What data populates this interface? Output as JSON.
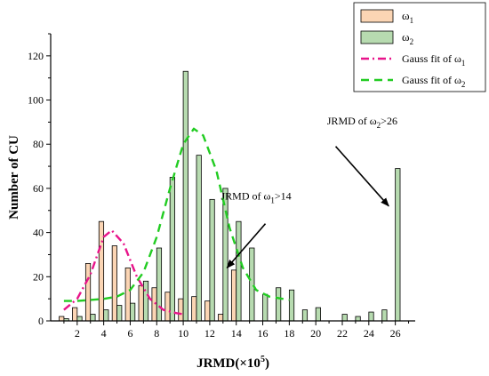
{
  "chart_data": {
    "type": "bar",
    "xlabel_main": "JRMD(×10",
    "xlabel_exp": "5",
    "xlabel_close": ")",
    "ylabel": "Number of CU",
    "xlim": [
      0,
      27.5
    ],
    "ylim": [
      0,
      130
    ],
    "x_ticks": [
      2,
      4,
      6,
      8,
      10,
      12,
      14,
      16,
      18,
      20,
      22,
      24,
      26
    ],
    "y_ticks": [
      0,
      20,
      40,
      60,
      80,
      100,
      120
    ],
    "colors": {
      "omega1_fill": "#fbd5b4",
      "omega2_fill": "#b7dbb0",
      "gauss1": "#e8148a",
      "gauss2": "#22cc22"
    },
    "series": [
      {
        "name_base": "ω",
        "name_sub": "1",
        "x": [
          1,
          2,
          3,
          4,
          5,
          6,
          7,
          8,
          9,
          10,
          11,
          12,
          13,
          14
        ],
        "values": [
          2,
          6,
          26,
          45,
          34,
          24,
          16,
          15,
          13,
          10,
          11,
          9,
          3,
          23
        ]
      },
      {
        "name_base": "ω",
        "name_sub": "2",
        "x": [
          1,
          2,
          3,
          4,
          5,
          6,
          7,
          8,
          9,
          10,
          11,
          12,
          13,
          14,
          15,
          16,
          17,
          18,
          19,
          20,
          22,
          23,
          24,
          25,
          26
        ],
        "values": [
          1,
          2,
          3,
          5,
          7,
          8,
          18,
          33,
          65,
          113,
          75,
          55,
          60,
          45,
          33,
          12,
          15,
          14,
          5,
          6,
          3,
          2,
          4,
          5,
          69
        ]
      }
    ],
    "fits": [
      {
        "name_base": "Gauss fit of ω",
        "name_sub": "1",
        "points": [
          [
            1,
            5
          ],
          [
            2,
            10
          ],
          [
            3,
            21
          ],
          [
            4,
            38
          ],
          [
            4.6,
            41
          ],
          [
            5.5,
            35
          ],
          [
            6.5,
            20
          ],
          [
            7.5,
            10
          ],
          [
            8.5,
            5
          ],
          [
            9.5,
            3.5
          ],
          [
            10,
            3
          ]
        ]
      },
      {
        "name_base": "Gauss fit of ω",
        "name_sub": "2",
        "points": [
          [
            1,
            9
          ],
          [
            2,
            9
          ],
          [
            3,
            9.5
          ],
          [
            4,
            10
          ],
          [
            5,
            11
          ],
          [
            6,
            14
          ],
          [
            7,
            22
          ],
          [
            8,
            38
          ],
          [
            9,
            60
          ],
          [
            10,
            80
          ],
          [
            10.8,
            87
          ],
          [
            11.5,
            84
          ],
          [
            12.5,
            68
          ],
          [
            13.5,
            42
          ],
          [
            14.5,
            24
          ],
          [
            15.5,
            14
          ],
          [
            16.5,
            11
          ],
          [
            17.5,
            10
          ],
          [
            18,
            9.5
          ]
        ]
      }
    ],
    "annotations": [
      {
        "base": "JRMD of ω",
        "sub": "1",
        "suffix": ">14",
        "text_at": [
          15.5,
          55
        ],
        "arrow_from": [
          16.2,
          44
        ],
        "arrow_to": [
          13.3,
          24
        ]
      },
      {
        "base": "JRMD of ω",
        "sub": "2",
        "suffix": ">26",
        "text_at": [
          23.5,
          89
        ],
        "arrow_from": [
          21.5,
          79
        ],
        "arrow_to": [
          25.5,
          52
        ]
      }
    ]
  }
}
